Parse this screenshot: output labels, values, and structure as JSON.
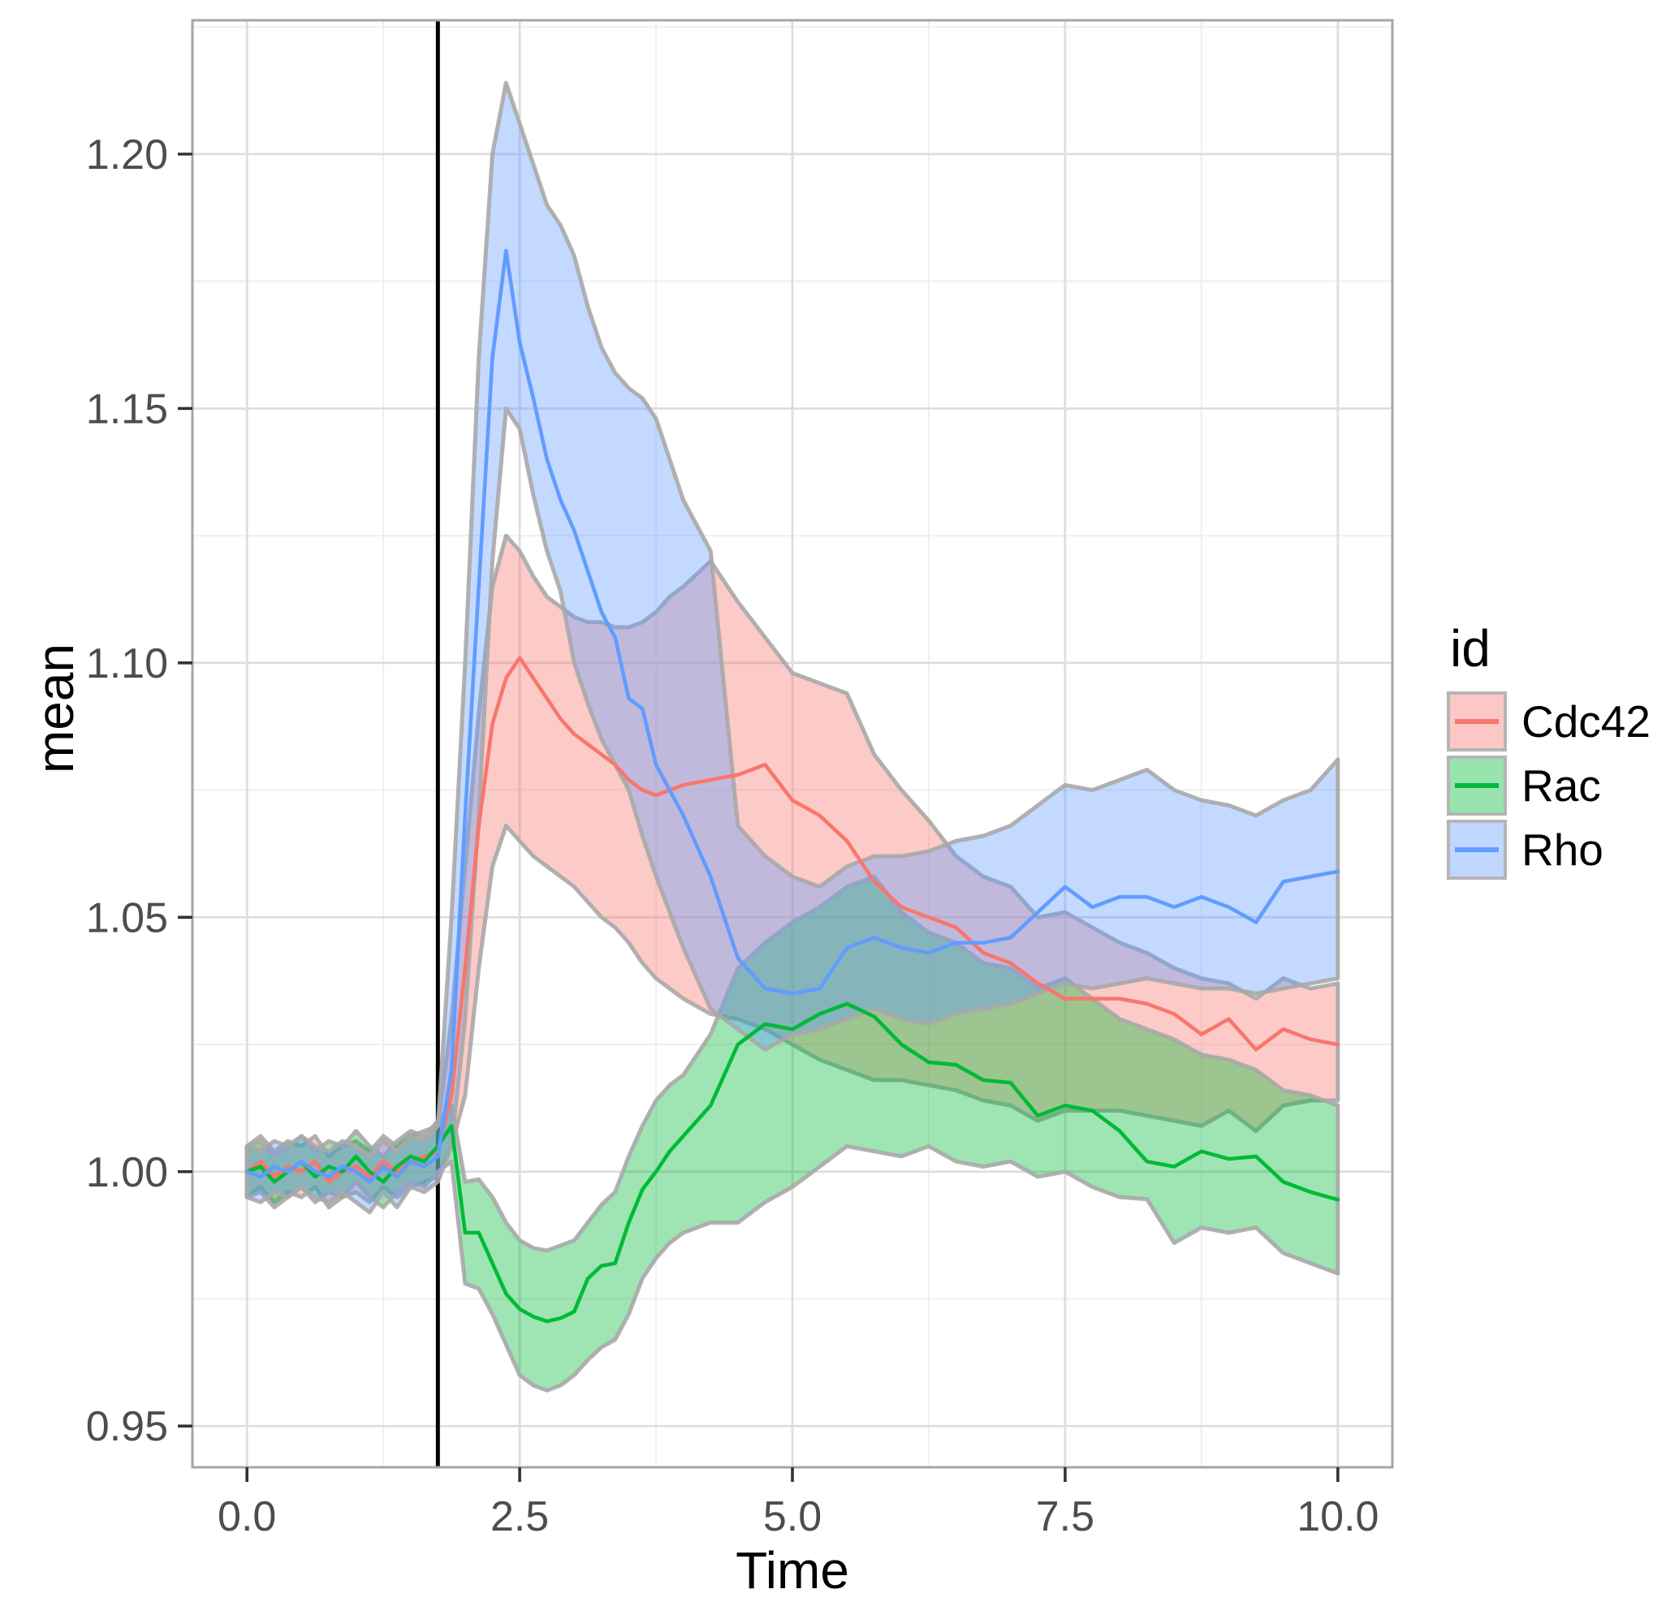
{
  "chart_data": {
    "type": "line",
    "title": "",
    "xlabel": "Time",
    "ylabel": "mean",
    "legend_title": "id",
    "legend_position": "right",
    "grid": true,
    "xlim": [
      -0.5,
      10.5
    ],
    "ylim": [
      0.9419,
      1.2263
    ],
    "x_major_ticks": {
      "values": [
        0,
        2.5,
        5,
        7.5,
        10
      ],
      "labels": [
        "0.0",
        "2.5",
        "5.0",
        "7.5",
        "10.0"
      ]
    },
    "y_major_ticks": {
      "values": [
        0.95,
        1.0,
        1.05,
        1.1,
        1.15,
        1.2
      ],
      "labels": [
        "0.95",
        "1.00",
        "1.05",
        "1.10",
        "1.15",
        "1.20"
      ]
    },
    "x_minor_ticks": [
      1.25,
      3.75,
      6.25,
      8.75
    ],
    "y_minor_ticks": [
      0.975,
      1.025,
      1.075,
      1.125,
      1.175,
      1.225
    ],
    "vline_x": 1.75,
    "vline_color": "#000000",
    "ribbon_opacity": 0.38,
    "ribbon_stroke_color": "#a8a8a8",
    "grid_major_color": "#dedede",
    "grid_minor_color": "#efefef",
    "panel_border_color": "#a6a6a6",
    "tick_color": "#333333",
    "tick_label_color": "#4d4d4d",
    "t": [
      0,
      0.125,
      0.25,
      0.375,
      0.5,
      0.625,
      0.75,
      0.875,
      1,
      1.125,
      1.25,
      1.375,
      1.5,
      1.625,
      1.75,
      1.875,
      2,
      2.125,
      2.25,
      2.375,
      2.5,
      2.625,
      2.75,
      2.875,
      3,
      3.125,
      3.25,
      3.375,
      3.5,
      3.625,
      3.75,
      3.875,
      4,
      4.25,
      4.5,
      4.75,
      5,
      5.25,
      5.5,
      5.75,
      6,
      6.25,
      6.5,
      6.75,
      7,
      7.25,
      7.5,
      7.75,
      8,
      8.25,
      8.5,
      8.75,
      9,
      9.25,
      9.5,
      9.75,
      10
    ],
    "series": [
      {
        "name": "Cdc42",
        "color": "#F8766D",
        "mean": [
          1,
          1.002,
          0.999,
          1.001,
          1,
          1.002,
          0.998,
          1,
          1.001,
          0.999,
          1.002,
          1,
          1.002,
          1.003,
          1.004,
          1.015,
          1.04,
          1.068,
          1.088,
          1.097,
          1.101,
          1.097,
          1.093,
          1.089,
          1.086,
          1.084,
          1.082,
          1.08,
          1.077,
          1.075,
          1.074,
          1.075,
          1.076,
          1.077,
          1.078,
          1.08,
          1.073,
          1.07,
          1.065,
          1.057,
          1.052,
          1.05,
          1.048,
          1.043,
          1.041,
          1.037,
          1.034,
          1.034,
          1.034,
          1.033,
          1.031,
          1.027,
          1.03,
          1.024,
          1.028,
          1.026,
          1.025
        ],
        "lo": [
          0.995,
          0.997,
          0.994,
          0.996,
          0.995,
          0.997,
          0.993,
          0.995,
          0.996,
          0.994,
          0.997,
          0.995,
          0.997,
          0.998,
          0.999,
          1.005,
          1.015,
          1.04,
          1.06,
          1.068,
          1.065,
          1.062,
          1.06,
          1.058,
          1.056,
          1.053,
          1.05,
          1.048,
          1.045,
          1.041,
          1.038,
          1.036,
          1.034,
          1.031,
          1.03,
          1.028,
          1.025,
          1.022,
          1.02,
          1.018,
          1.018,
          1.017,
          1.016,
          1.014,
          1.013,
          1.01,
          1.012,
          1.012,
          1.012,
          1.011,
          1.01,
          1.009,
          1.012,
          1.008,
          1.013,
          1.014,
          1.014
        ],
        "hi": [
          1.005,
          1.007,
          1.004,
          1.006,
          1.005,
          1.007,
          1.003,
          1.005,
          1.006,
          1.004,
          1.007,
          1.005,
          1.007,
          1.008,
          1.009,
          1.03,
          1.06,
          1.09,
          1.115,
          1.125,
          1.122,
          1.117,
          1.113,
          1.111,
          1.109,
          1.108,
          1.108,
          1.107,
          1.107,
          1.108,
          1.11,
          1.113,
          1.115,
          1.12,
          1.112,
          1.105,
          1.098,
          1.096,
          1.094,
          1.082,
          1.075,
          1.069,
          1.062,
          1.058,
          1.056,
          1.05,
          1.051,
          1.048,
          1.045,
          1.043,
          1.04,
          1.038,
          1.037,
          1.034,
          1.038,
          1.036,
          1.037
        ]
      },
      {
        "name": "Rac",
        "color": "#00BA38",
        "mean": [
          1,
          1.001,
          0.998,
          1,
          1.002,
          0.999,
          1.001,
          1,
          1.003,
          1,
          0.998,
          1.001,
          1.003,
          1.002,
          1.005,
          1.009,
          0.988,
          0.988,
          0.982,
          0.976,
          0.973,
          0.9715,
          0.9706,
          0.9712,
          0.9725,
          0.979,
          0.9815,
          0.982,
          0.99,
          0.9965,
          1,
          1.004,
          1.007,
          1.013,
          1.025,
          1.029,
          1.028,
          1.031,
          1.033,
          1.0305,
          1.025,
          1.0215,
          1.021,
          1.018,
          1.0175,
          1.011,
          1.013,
          1.012,
          1.008,
          1.002,
          1.001,
          1.004,
          1.0025,
          1.003,
          0.998,
          0.996,
          0.9945
        ],
        "lo": [
          0.995,
          0.996,
          0.993,
          0.995,
          0.997,
          0.994,
          0.996,
          0.995,
          0.998,
          0.995,
          0.993,
          0.996,
          0.998,
          0.997,
          1,
          1.002,
          0.978,
          0.977,
          0.972,
          0.966,
          0.96,
          0.958,
          0.957,
          0.958,
          0.96,
          0.963,
          0.9655,
          0.967,
          0.972,
          0.979,
          0.983,
          0.986,
          0.988,
          0.99,
          0.99,
          0.994,
          0.997,
          1.001,
          1.005,
          1.004,
          1.003,
          1.005,
          1.002,
          1.001,
          1.002,
          0.999,
          1,
          0.997,
          0.995,
          0.9946,
          0.986,
          0.989,
          0.988,
          0.989,
          0.984,
          0.982,
          0.98
        ],
        "hi": [
          1.005,
          1.006,
          1.003,
          1.005,
          1.007,
          1.004,
          1.006,
          1.005,
          1.008,
          1.005,
          1.003,
          1.006,
          1.008,
          1.007,
          1.01,
          1.013,
          0.998,
          0.9985,
          0.995,
          0.99,
          0.9865,
          0.985,
          0.9845,
          0.9855,
          0.9865,
          0.99,
          0.9935,
          0.996,
          1.003,
          1.009,
          1.014,
          1.017,
          1.019,
          1.027,
          1.04,
          1.045,
          1.049,
          1.052,
          1.056,
          1.058,
          1.051,
          1.047,
          1.045,
          1.041,
          1.04,
          1.036,
          1.038,
          1.034,
          1.03,
          1.028,
          1.026,
          1.023,
          1.022,
          1.02,
          1.016,
          1.015,
          1.013
        ]
      },
      {
        "name": "Rho",
        "color": "#619CFF",
        "mean": [
          1,
          0.999,
          1.001,
          1,
          1.002,
          1,
          0.999,
          1.001,
          1,
          0.998,
          1.001,
          0.999,
          1.002,
          1.001,
          1.003,
          1.02,
          1.07,
          1.115,
          1.16,
          1.181,
          1.163,
          1.152,
          1.14,
          1.132,
          1.126,
          1.118,
          1.11,
          1.105,
          1.093,
          1.091,
          1.08,
          1.075,
          1.07,
          1.058,
          1.042,
          1.036,
          1.035,
          1.036,
          1.044,
          1.046,
          1.044,
          1.043,
          1.045,
          1.045,
          1.046,
          1.051,
          1.056,
          1.052,
          1.054,
          1.054,
          1.052,
          1.054,
          1.052,
          1.049,
          1.057,
          1.058,
          1.059
        ],
        "lo": [
          0.995,
          0.994,
          0.996,
          0.995,
          0.997,
          0.995,
          0.994,
          0.996,
          0.994,
          0.992,
          0.996,
          0.993,
          0.997,
          0.996,
          0.998,
          1.005,
          1.03,
          1.07,
          1.12,
          1.15,
          1.146,
          1.133,
          1.122,
          1.114,
          1.1,
          1.092,
          1.085,
          1.08,
          1.075,
          1.066,
          1.058,
          1.051,
          1.044,
          1.032,
          1.028,
          1.024,
          1.027,
          1.028,
          1.03,
          1.032,
          1.03,
          1.029,
          1.031,
          1.032,
          1.033,
          1.035,
          1.037,
          1.036,
          1.037,
          1.038,
          1.037,
          1.036,
          1.036,
          1.035,
          1.036,
          1.037,
          1.038
        ],
        "hi": [
          1.005,
          1.004,
          1.006,
          1.005,
          1.007,
          1.005,
          1.004,
          1.006,
          1.005,
          1.003,
          1.006,
          1.004,
          1.007,
          1.006,
          1.009,
          1.05,
          1.1,
          1.16,
          1.2,
          1.214,
          1.206,
          1.198,
          1.19,
          1.186,
          1.18,
          1.17,
          1.162,
          1.157,
          1.154,
          1.152,
          1.148,
          1.14,
          1.132,
          1.122,
          1.068,
          1.062,
          1.058,
          1.056,
          1.06,
          1.062,
          1.062,
          1.063,
          1.065,
          1.066,
          1.068,
          1.072,
          1.076,
          1.075,
          1.077,
          1.079,
          1.075,
          1.073,
          1.072,
          1.07,
          1.073,
          1.075,
          1.081
        ]
      }
    ]
  }
}
